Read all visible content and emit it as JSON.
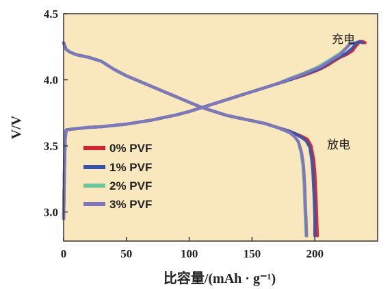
{
  "chart_data": {
    "type": "line",
    "title": "",
    "xlabel": "比容量/(mAh · g⁻¹)",
    "ylabel": "V/V",
    "xlim": [
      0,
      250
    ],
    "ylim": [
      2.78,
      4.5
    ],
    "xticks": [
      "0",
      "50",
      "100",
      "150",
      "200"
    ],
    "yticks": [
      "3.0",
      "3.5",
      "4.0",
      "4.5"
    ],
    "grid": false,
    "legend_position": "lower-left",
    "plot_background": "#f9e7be",
    "annotations": [
      {
        "text": "充电",
        "x": 222,
        "y": 4.33
      },
      {
        "text": "放电",
        "x": 220,
        "y": 3.54
      }
    ],
    "series": [
      {
        "name": "0% PVF",
        "color": "#d8222e",
        "charge": {
          "x": [
            0,
            0.6,
            1.2,
            2,
            5,
            10,
            20,
            30,
            40,
            50,
            60,
            70,
            80,
            90,
            100,
            110,
            120,
            130,
            140,
            150,
            160,
            170,
            180,
            190,
            200,
            205,
            210,
            215,
            220,
            225,
            230,
            233,
            236,
            238,
            240
          ],
          "y": [
            2.95,
            3.3,
            3.55,
            3.62,
            3.625,
            3.63,
            3.64,
            3.645,
            3.655,
            3.665,
            3.68,
            3.695,
            3.715,
            3.735,
            3.76,
            3.79,
            3.82,
            3.85,
            3.88,
            3.91,
            3.94,
            3.97,
            4.0,
            4.03,
            4.065,
            4.085,
            4.11,
            4.14,
            4.17,
            4.19,
            4.22,
            4.26,
            4.29,
            4.29,
            4.28
          ]
        },
        "discharge": {
          "x": [
            0,
            2,
            5,
            10,
            20,
            30,
            40,
            50,
            60,
            70,
            80,
            90,
            100,
            110,
            120,
            130,
            140,
            150,
            160,
            170,
            180,
            185,
            190,
            194,
            197,
            199,
            200,
            201,
            201.5,
            202
          ],
          "y": [
            4.28,
            4.23,
            4.21,
            4.19,
            4.17,
            4.14,
            4.08,
            4.03,
            3.99,
            3.95,
            3.91,
            3.87,
            3.83,
            3.79,
            3.76,
            3.73,
            3.71,
            3.69,
            3.67,
            3.64,
            3.61,
            3.59,
            3.57,
            3.55,
            3.5,
            3.4,
            3.3,
            3.1,
            2.95,
            2.82
          ]
        }
      },
      {
        "name": "1% PVF",
        "color": "#3850a8",
        "charge": {
          "x": [
            0,
            0.6,
            1.2,
            2,
            5,
            10,
            20,
            30,
            40,
            50,
            60,
            70,
            80,
            90,
            100,
            110,
            120,
            130,
            140,
            150,
            160,
            170,
            180,
            190,
            200,
            205,
            210,
            215,
            220,
            225,
            230,
            233,
            236,
            238
          ],
          "y": [
            2.95,
            3.3,
            3.55,
            3.62,
            3.625,
            3.63,
            3.64,
            3.645,
            3.655,
            3.665,
            3.68,
            3.695,
            3.715,
            3.735,
            3.76,
            3.79,
            3.82,
            3.85,
            3.88,
            3.91,
            3.94,
            3.97,
            4.0,
            4.035,
            4.07,
            4.09,
            4.12,
            4.15,
            4.175,
            4.2,
            4.24,
            4.28,
            4.29,
            4.28
          ]
        },
        "discharge": {
          "x": [
            0,
            2,
            5,
            10,
            20,
            30,
            40,
            50,
            60,
            70,
            80,
            90,
            100,
            110,
            120,
            130,
            140,
            150,
            160,
            170,
            180,
            185,
            190,
            193,
            196,
            197.5,
            198.5,
            199.5,
            200,
            200
          ],
          "y": [
            4.28,
            4.23,
            4.21,
            4.19,
            4.17,
            4.14,
            4.08,
            4.03,
            3.99,
            3.95,
            3.91,
            3.87,
            3.83,
            3.79,
            3.76,
            3.73,
            3.71,
            3.69,
            3.67,
            3.64,
            3.61,
            3.59,
            3.56,
            3.54,
            3.49,
            3.4,
            3.3,
            3.1,
            2.95,
            2.82
          ]
        }
      },
      {
        "name": "2% PVF",
        "color": "#6ec49b",
        "charge": {
          "x": [
            0,
            0.6,
            1.2,
            2,
            5,
            10,
            20,
            30,
            40,
            50,
            60,
            70,
            80,
            90,
            100,
            110,
            120,
            130,
            140,
            150,
            160,
            170,
            180,
            190,
            200,
            205,
            210,
            215,
            220,
            225,
            228,
            230
          ],
          "y": [
            2.95,
            3.3,
            3.55,
            3.62,
            3.625,
            3.63,
            3.64,
            3.645,
            3.655,
            3.665,
            3.68,
            3.695,
            3.715,
            3.735,
            3.76,
            3.79,
            3.82,
            3.85,
            3.88,
            3.91,
            3.94,
            3.97,
            4.01,
            4.045,
            4.085,
            4.11,
            4.14,
            4.17,
            4.2,
            4.24,
            4.28,
            4.28
          ]
        },
        "discharge": {
          "x": [
            0,
            2,
            5,
            10,
            20,
            30,
            40,
            50,
            60,
            70,
            80,
            90,
            100,
            110,
            120,
            130,
            140,
            150,
            160,
            170,
            180,
            184,
            187,
            189,
            190.5,
            191.5,
            192,
            192.5,
            193
          ],
          "y": [
            4.28,
            4.23,
            4.21,
            4.19,
            4.17,
            4.14,
            4.08,
            4.03,
            3.99,
            3.95,
            3.91,
            3.87,
            3.83,
            3.79,
            3.76,
            3.73,
            3.71,
            3.69,
            3.67,
            3.64,
            3.6,
            3.57,
            3.53,
            3.45,
            3.35,
            3.2,
            3.05,
            2.95,
            2.82
          ]
        }
      },
      {
        "name": "3% PVF",
        "color": "#7e75ba",
        "charge": {
          "x": [
            0,
            0.6,
            1.2,
            2,
            5,
            10,
            20,
            30,
            40,
            50,
            60,
            70,
            80,
            90,
            100,
            110,
            120,
            130,
            140,
            150,
            160,
            170,
            180,
            190,
            200,
            205,
            210,
            215,
            220,
            224,
            228,
            230
          ],
          "y": [
            2.95,
            3.3,
            3.55,
            3.62,
            3.625,
            3.63,
            3.64,
            3.645,
            3.655,
            3.665,
            3.68,
            3.695,
            3.715,
            3.735,
            3.76,
            3.79,
            3.82,
            3.85,
            3.88,
            3.91,
            3.94,
            3.97,
            4.005,
            4.04,
            4.08,
            4.1,
            4.13,
            4.16,
            4.19,
            4.23,
            4.27,
            4.28
          ]
        },
        "discharge": {
          "x": [
            0,
            2,
            5,
            10,
            20,
            30,
            40,
            50,
            60,
            70,
            80,
            90,
            100,
            110,
            120,
            130,
            140,
            150,
            160,
            170,
            180,
            184,
            187,
            189.5,
            191,
            192,
            192.5,
            193,
            193.5
          ],
          "y": [
            4.28,
            4.23,
            4.21,
            4.19,
            4.17,
            4.14,
            4.08,
            4.03,
            3.99,
            3.95,
            3.91,
            3.87,
            3.83,
            3.79,
            3.76,
            3.73,
            3.71,
            3.69,
            3.67,
            3.64,
            3.6,
            3.57,
            3.53,
            3.45,
            3.35,
            3.2,
            3.05,
            2.95,
            2.82
          ]
        }
      }
    ]
  }
}
